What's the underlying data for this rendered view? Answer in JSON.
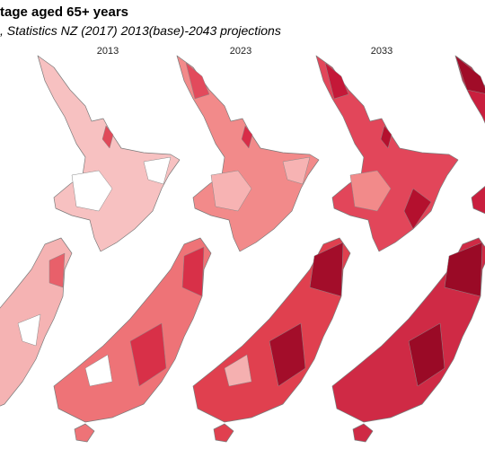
{
  "title": "tage aged 65+ years",
  "subtitle": ", Statistics NZ (2017) 2013(base)-2043 projections",
  "maps": [
    {
      "label": "2013"
    },
    {
      "label": "2023"
    },
    {
      "label": "2033"
    }
  ]
}
